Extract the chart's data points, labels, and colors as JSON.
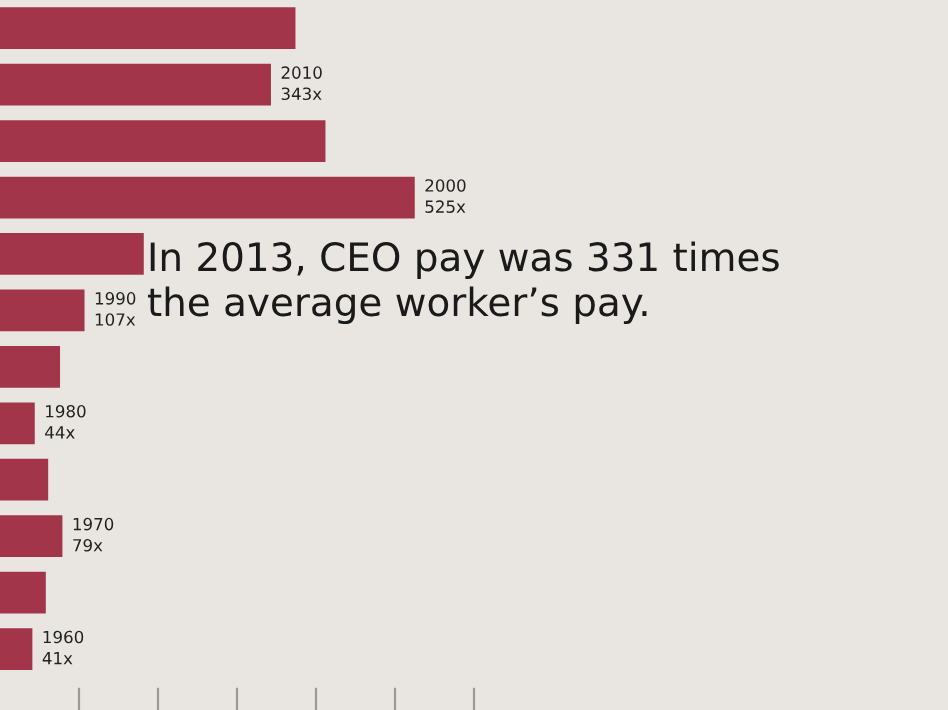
{
  "chart_data": {
    "type": "bar",
    "orientation": "horizontal",
    "categories": [
      null,
      "2010",
      null,
      "2000",
      null,
      "1990",
      null,
      "1980",
      null,
      "1970",
      null,
      "1960"
    ],
    "values": [
      374,
      343,
      412,
      525,
      182,
      107,
      76,
      44,
      61,
      79,
      58,
      41
    ],
    "value_labels": [
      null,
      "343x",
      null,
      "525x",
      null,
      "107x",
      null,
      "44x",
      null,
      "79x",
      null,
      "41x"
    ],
    "color": "#a3354a",
    "xlim": [
      0,
      1200
    ],
    "xticks": [
      {
        "value": 100,
        "label": null
      },
      {
        "value": 200,
        "label": null
      },
      {
        "value": 300,
        "label": null
      },
      {
        "value": 400,
        "label": null
      },
      {
        "value": 500,
        "label": null
      },
      {
        "value": 600,
        "label": null
      }
    ],
    "annotations": [
      "In 2013, CEO pay was 331 times the average worker’s pay."
    ],
    "grid": false,
    "legend": false
  }
}
